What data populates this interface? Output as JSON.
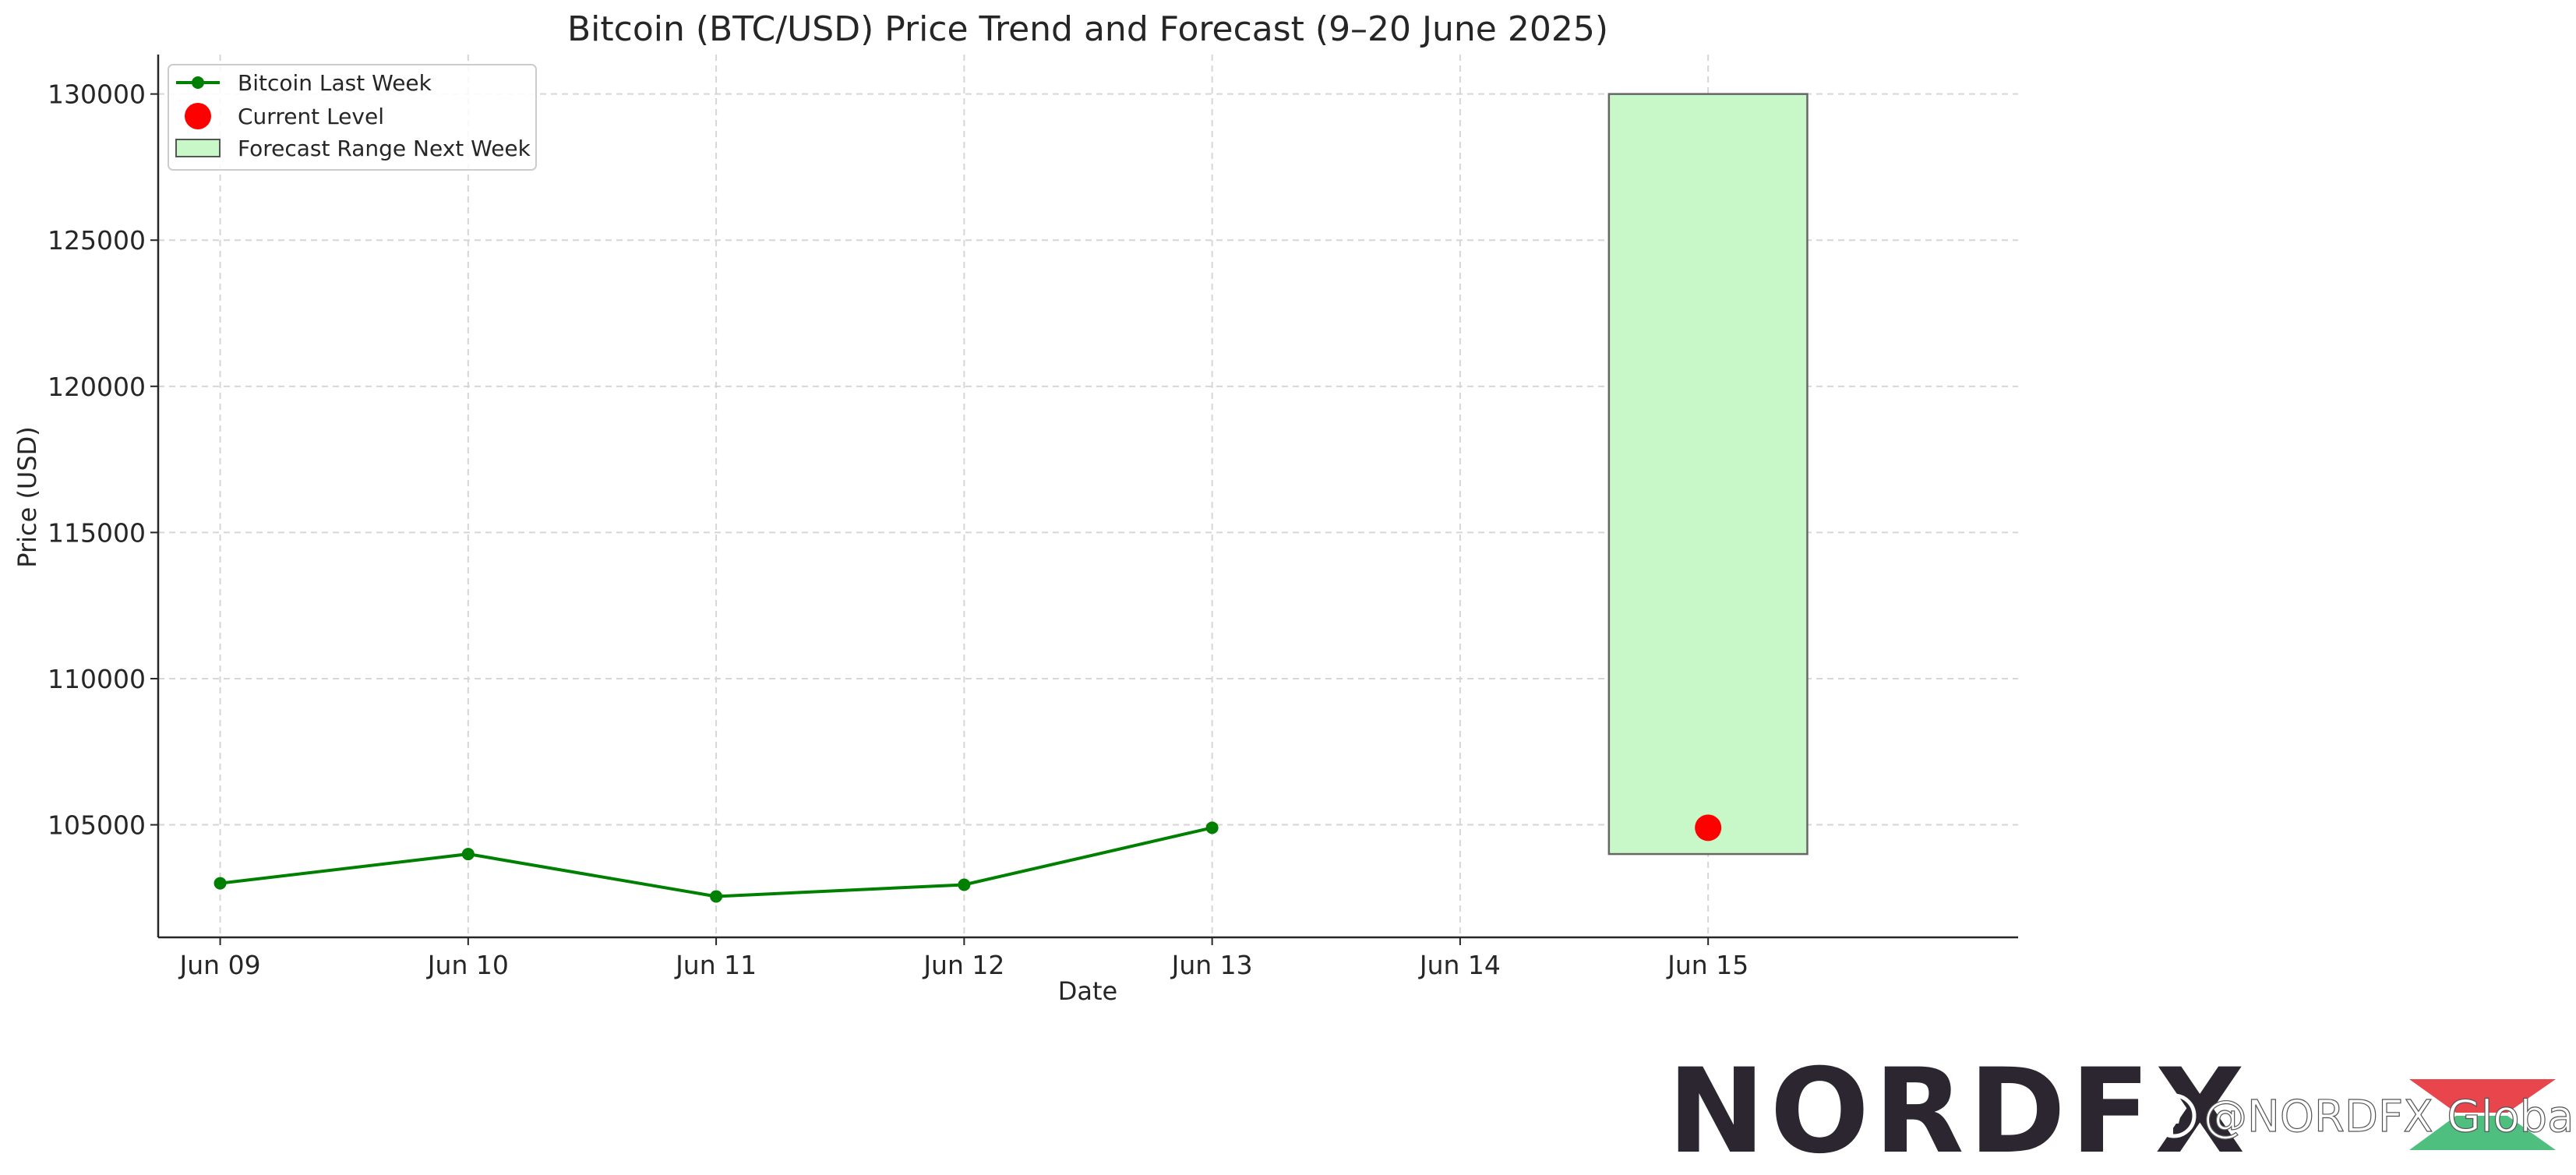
{
  "chart_data": {
    "type": "line",
    "title": "Bitcoin (BTC/USD) Price Trend and Forecast (9–20 June 2025)",
    "xlabel": "Date",
    "ylabel": "Price (USD)",
    "x_ticks": [
      "Jun 09",
      "Jun 10",
      "Jun 11",
      "Jun 12",
      "Jun 13",
      "Jun 14",
      "Jun 15"
    ],
    "y_ticks": [
      105000,
      110000,
      115000,
      120000,
      125000,
      130000
    ],
    "xlim": [
      "Jun 08 18:00",
      "Jun 16 06:00"
    ],
    "ylim": [
      101150,
      131350
    ],
    "grid": true,
    "legend_position": "top-left",
    "series": [
      {
        "name": "Bitcoin Last Week",
        "type": "line",
        "color": "#008000",
        "points": [
          {
            "x": "Jun 09",
            "y": 103000
          },
          {
            "x": "Jun 10",
            "y": 104000
          },
          {
            "x": "Jun 11",
            "y": 102550
          },
          {
            "x": "Jun 12",
            "y": 102950
          },
          {
            "x": "Jun 13",
            "y": 104900
          }
        ]
      },
      {
        "name": "Current Level",
        "type": "scatter",
        "color": "#ff0000",
        "points": [
          {
            "x": "Jun 15",
            "y": 104900
          }
        ]
      },
      {
        "name": "Forecast Range Next Week",
        "type": "range",
        "color": "#c8f7c8",
        "x_start": "Jun 14 14:24",
        "x_end": "Jun 15 09:36",
        "y_low": 104000,
        "y_high": 130000
      }
    ]
  },
  "watermark": {
    "logo_text": "NORDFX",
    "handle": "@NORDFX Global"
  }
}
